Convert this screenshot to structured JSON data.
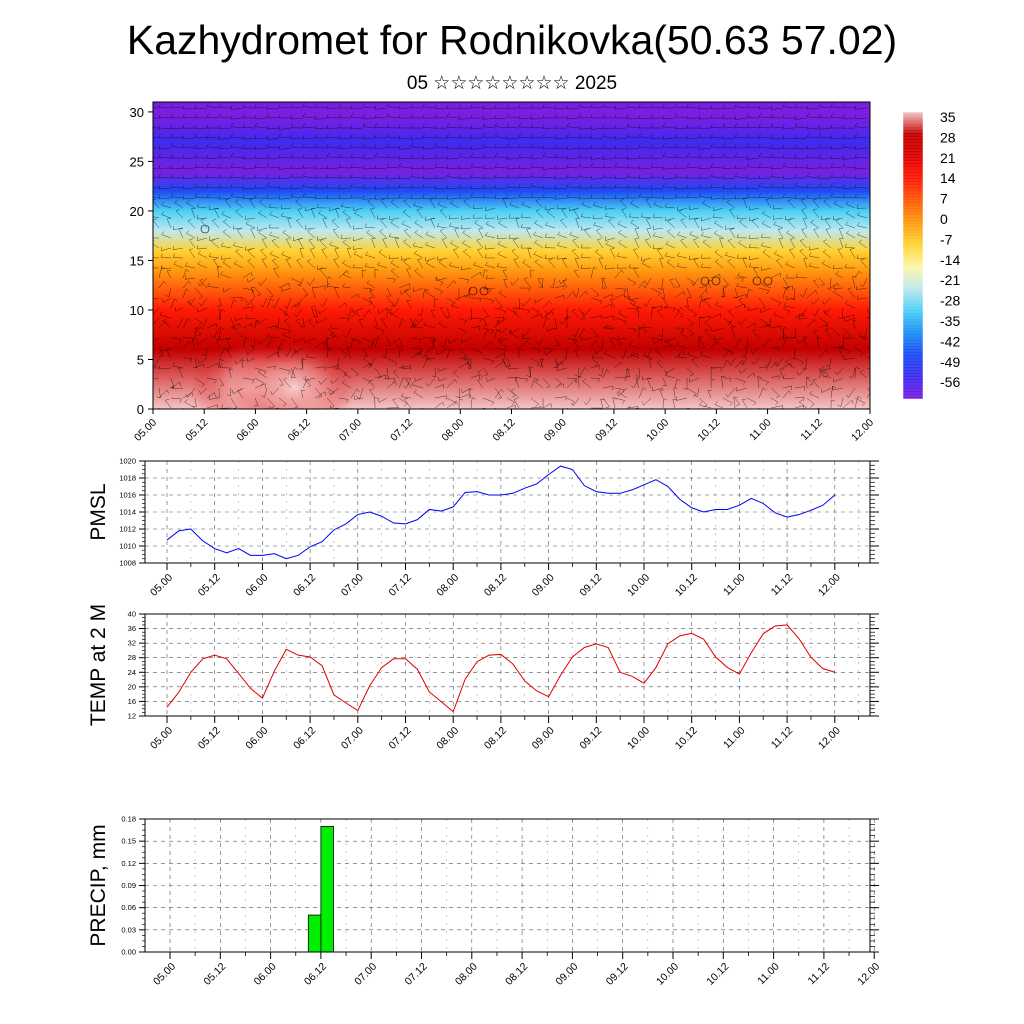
{
  "title": "Kazhydromet for Rodnikovka(50.63 57.02)",
  "subtitle": "05 ☆☆☆☆☆☆☆☆ 2025",
  "time_ticks": [
    "05.00",
    "05.12",
    "06.00",
    "06.12",
    "07.00",
    "07.12",
    "08.00",
    "08.12",
    "09.00",
    "09.12",
    "10.00",
    "10.12",
    "11.00",
    "11.12",
    "12.00"
  ],
  "chart_data": [
    {
      "type": "heatmap",
      "name": "temperature-wind cross-section",
      "y_ticks": [
        "0",
        "5",
        "10",
        "15",
        "20",
        "25",
        "30"
      ],
      "ylim": [
        0,
        31
      ],
      "colorbar": {
        "labels": [
          "35",
          "28",
          "21",
          "14",
          "7",
          "0",
          "-7",
          "-14",
          "-21",
          "-28",
          "-35",
          "-42",
          "-49",
          "-56"
        ],
        "range": [
          -63,
          38
        ],
        "colors": [
          "#7a1fe0",
          "#3d2cf0",
          "#1c4cf5",
          "#1f8ff5",
          "#4bd0f5",
          "#bfe8ef",
          "#fff6a8",
          "#ffd335",
          "#ff9a10",
          "#ff5a08",
          "#ff1a05",
          "#dc0000",
          "#c30000",
          "#f5c6c6"
        ]
      },
      "profile": [
        {
          "h": 0,
          "t": 33
        },
        {
          "h": 6,
          "t": 24
        },
        {
          "h": 10,
          "t": 14
        },
        {
          "h": 14,
          "t": 1
        },
        {
          "h": 16,
          "t": -8
        },
        {
          "h": 18,
          "t": -22
        },
        {
          "h": 20,
          "t": -30
        },
        {
          "h": 22,
          "t": -44
        },
        {
          "h": 24,
          "t": -56
        },
        {
          "h": 27,
          "t": -54
        },
        {
          "h": 29.5,
          "t": -60
        },
        {
          "h": 31,
          "t": -62
        }
      ],
      "hot_spots": [
        {
          "time": 6.95,
          "h": 2.2,
          "t": 37
        },
        {
          "time": 7.75,
          "h": 2.2,
          "t": 38
        }
      ]
    },
    {
      "type": "line",
      "ylabel": "PMSL",
      "ylim": [
        1008,
        1020
      ],
      "y_ticks": [
        "1008",
        "1010",
        "1012",
        "1014",
        "1016",
        "1018",
        "1020"
      ],
      "color": "#0000ee",
      "x_hours": [
        0,
        3,
        6,
        9,
        12,
        15,
        18,
        21,
        24,
        27,
        30,
        33,
        36,
        39,
        42,
        45,
        48,
        51,
        54,
        57,
        60,
        63,
        66,
        69,
        72,
        75,
        78,
        81,
        84,
        87,
        90,
        93,
        96,
        99,
        102,
        105,
        108,
        111,
        114,
        117,
        120,
        123,
        126,
        129,
        132,
        135,
        138,
        141,
        144,
        147,
        150,
        153,
        156,
        159,
        162,
        165,
        168
      ],
      "values": [
        1010.7,
        1011.8,
        1012.0,
        1010.6,
        1009.7,
        1009.2,
        1009.7,
        1008.9,
        1008.9,
        1009.1,
        1008.5,
        1008.9,
        1009.9,
        1010.5,
        1011.9,
        1012.6,
        1013.7,
        1014.0,
        1013.5,
        1012.7,
        1012.6,
        1013.1,
        1014.3,
        1014.1,
        1014.6,
        1016.3,
        1016.4,
        1016.0,
        1016.0,
        1016.2,
        1016.8,
        1017.3,
        1018.4,
        1019.4,
        1019.0,
        1017.1,
        1016.4,
        1016.2,
        1016.2,
        1016.6,
        1017.2,
        1017.8,
        1017.0,
        1015.5,
        1014.5,
        1014.0,
        1014.3,
        1014.3,
        1014.8,
        1015.6,
        1015.0,
        1013.9,
        1013.4,
        1013.7,
        1014.2,
        1014.8,
        1016.0
      ]
    },
    {
      "type": "line",
      "ylabel": "TEMP at 2 M",
      "ylim": [
        12,
        40
      ],
      "y_ticks": [
        "12",
        "16",
        "20",
        "24",
        "28",
        "32",
        "36",
        "40"
      ],
      "color": "#dd0000",
      "x_hours": [
        0,
        3,
        6,
        9,
        12,
        15,
        18,
        21,
        24,
        27,
        30,
        33,
        36,
        39,
        42,
        45,
        48,
        51,
        54,
        57,
        60,
        63,
        66,
        69,
        72,
        75,
        78,
        81,
        84,
        87,
        90,
        93,
        96,
        99,
        102,
        105,
        108,
        111,
        114,
        117,
        120,
        123,
        126,
        129,
        132,
        135,
        138,
        141,
        144,
        147,
        150,
        153,
        156,
        159,
        162,
        165,
        168
      ],
      "values": [
        14.4,
        18.6,
        24.0,
        27.7,
        28.7,
        27.7,
        23.7,
        19.6,
        16.9,
        24.3,
        30.3,
        28.7,
        28.2,
        25.8,
        17.8,
        15.6,
        13.5,
        20.3,
        25.3,
        27.7,
        27.7,
        24.8,
        18.6,
        15.9,
        13.2,
        22.1,
        26.9,
        28.7,
        28.9,
        26.3,
        21.6,
        18.9,
        17.3,
        23.2,
        28.2,
        30.8,
        31.8,
        30.8,
        24.0,
        22.9,
        21.0,
        25.3,
        31.8,
        34.0,
        34.7,
        33.1,
        28.2,
        25.3,
        23.5,
        29.4,
        34.6,
        36.7,
        37.0,
        33.2,
        28.1,
        25.0,
        24.0
      ]
    },
    {
      "type": "bar",
      "ylabel": "PRECIP, mm",
      "ylim": [
        0,
        0.18
      ],
      "y_ticks": [
        "0.00",
        "0.03",
        "0.06",
        "0.09",
        "0.12",
        "0.15",
        "0.18"
      ],
      "color": "#00ee00",
      "bars": [
        {
          "start_hour": 33,
          "end_hour": 36,
          "value": 0.05
        },
        {
          "start_hour": 36,
          "end_hour": 39,
          "value": 0.17
        }
      ]
    }
  ]
}
